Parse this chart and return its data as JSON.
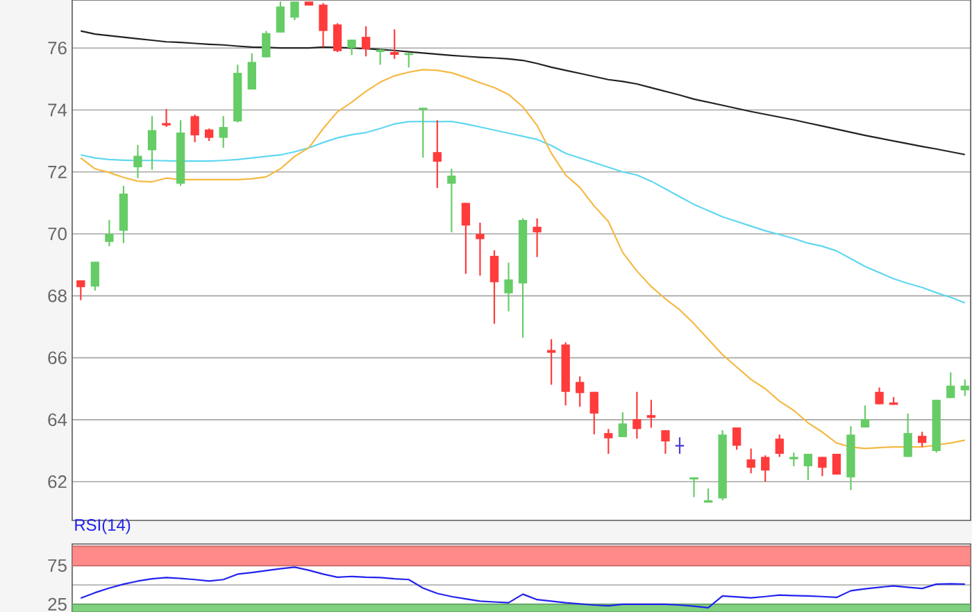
{
  "chart_data": [
    {
      "type": "candlestick",
      "categories": [
        null,
        null,
        null,
        null,
        null,
        null,
        null,
        null,
        null,
        null,
        null,
        null,
        null,
        null,
        null,
        null,
        null,
        null,
        null,
        null,
        null,
        null,
        null,
        null,
        null,
        null,
        null,
        null,
        null,
        null,
        null,
        null,
        null,
        null,
        null,
        null,
        null,
        null,
        null,
        null,
        null,
        null,
        null,
        null,
        null,
        null,
        null,
        null,
        null,
        null,
        null,
        null,
        null,
        null,
        null,
        null,
        null,
        null,
        null,
        null,
        null,
        null,
        null
      ],
      "ohlc": [
        [
          68.5,
          68.5,
          67.86,
          68.28
        ],
        [
          68.3,
          69.1,
          68.17,
          69.1
        ],
        [
          69.74,
          70.45,
          69.6,
          70.0
        ],
        [
          70.1,
          71.55,
          69.7,
          71.3
        ],
        [
          72.15,
          72.87,
          71.8,
          72.52
        ],
        [
          72.7,
          73.8,
          72.07,
          73.35
        ],
        [
          73.55,
          74.03,
          73.45,
          73.5
        ],
        [
          71.62,
          73.67,
          71.55,
          73.27
        ],
        [
          73.8,
          73.85,
          72.96,
          73.18
        ],
        [
          73.37,
          73.4,
          73.0,
          73.1
        ],
        [
          73.1,
          73.8,
          72.78,
          73.45
        ],
        [
          73.63,
          75.46,
          73.6,
          75.2
        ],
        [
          74.66,
          75.83,
          74.66,
          75.55
        ],
        [
          75.7,
          76.55,
          75.7,
          76.48
        ],
        [
          76.5,
          77.5,
          76.5,
          77.34
        ],
        [
          76.98,
          77.5,
          76.9,
          77.5
        ],
        [
          77.5,
          77.5,
          77.37,
          77.37
        ],
        [
          77.4,
          77.45,
          76.03,
          76.55
        ],
        [
          76.76,
          76.8,
          75.87,
          75.9
        ],
        [
          76.0,
          76.27,
          75.77,
          76.27
        ],
        [
          76.36,
          76.7,
          75.73,
          75.96
        ],
        [
          75.9,
          75.97,
          75.46,
          75.95
        ],
        [
          75.87,
          76.6,
          75.65,
          75.78
        ],
        [
          75.8,
          75.85,
          75.37,
          75.83
        ],
        [
          74.03,
          74.07,
          72.46,
          74.07
        ],
        [
          72.64,
          73.67,
          71.48,
          72.33
        ],
        [
          71.62,
          72.1,
          70.05,
          71.88
        ],
        [
          71.0,
          71.0,
          68.71,
          70.27
        ],
        [
          70.0,
          70.36,
          68.65,
          69.83
        ],
        [
          69.29,
          69.47,
          67.1,
          68.44
        ],
        [
          68.08,
          69.07,
          67.5,
          68.53
        ],
        [
          68.4,
          70.5,
          66.65,
          70.45
        ],
        [
          70.23,
          70.5,
          69.25,
          70.05
        ],
        [
          66.25,
          66.6,
          65.13,
          66.16
        ],
        [
          66.43,
          66.5,
          64.46,
          64.9
        ],
        [
          65.22,
          65.4,
          64.42,
          64.86
        ],
        [
          64.9,
          64.9,
          63.53,
          64.2
        ],
        [
          63.57,
          63.7,
          62.9,
          63.4
        ],
        [
          63.44,
          64.24,
          63.44,
          63.88
        ],
        [
          64.02,
          64.9,
          63.39,
          63.7
        ],
        [
          64.15,
          64.64,
          63.74,
          64.06
        ],
        [
          63.66,
          63.66,
          62.9,
          63.3
        ],
        [
          63.16,
          63.43,
          62.9,
          63.16
        ],
        [
          62.1,
          62.14,
          61.5,
          62.14
        ],
        [
          61.35,
          61.78,
          61.35,
          61.4
        ],
        [
          61.46,
          63.66,
          61.4,
          63.52
        ],
        [
          63.75,
          63.75,
          63.03,
          63.16
        ],
        [
          62.72,
          63.07,
          62.27,
          62.45
        ],
        [
          62.8,
          62.85,
          62.0,
          62.36
        ],
        [
          63.39,
          63.52,
          62.8,
          62.9
        ],
        [
          62.75,
          62.94,
          62.5,
          62.8
        ],
        [
          62.5,
          62.9,
          62.05,
          62.9
        ],
        [
          62.8,
          62.8,
          62.18,
          62.45
        ],
        [
          62.9,
          62.9,
          62.23,
          62.23
        ],
        [
          62.14,
          63.79,
          61.73,
          63.52
        ],
        [
          63.75,
          64.46,
          63.75,
          64.02
        ],
        [
          64.9,
          65.04,
          64.5,
          64.5
        ],
        [
          64.53,
          64.73,
          64.48,
          64.48
        ],
        [
          62.8,
          64.2,
          62.8,
          63.57
        ],
        [
          63.48,
          63.61,
          63.12,
          63.25
        ],
        [
          62.99,
          64.64,
          62.94,
          64.64
        ],
        [
          64.7,
          65.53,
          64.7,
          65.1
        ],
        [
          64.95,
          65.3,
          64.77,
          65.1
        ]
      ],
      "colors": [
        "#ff3b3b",
        "#66cc66",
        "#66cc66",
        "#66cc66",
        "#66cc66",
        "#66cc66",
        "#ff3b3b",
        "#66cc66",
        "#ff3b3b",
        "#ff3b3b",
        "#66cc66",
        "#66cc66",
        "#66cc66",
        "#66cc66",
        "#66cc66",
        "#66cc66",
        "#ff3b3b",
        "#ff3b3b",
        "#ff3b3b",
        "#66cc66",
        "#ff3b3b",
        "#66cc66",
        "#ff3b3b",
        "#66cc66",
        "#66cc66",
        "#ff3b3b",
        "#66cc66",
        "#ff3b3b",
        "#ff3b3b",
        "#ff3b3b",
        "#66cc66",
        "#66cc66",
        "#ff3b3b",
        "#ff3b3b",
        "#ff3b3b",
        "#ff3b3b",
        "#ff3b3b",
        "#ff3b3b",
        "#66cc66",
        "#ff3b3b",
        "#ff3b3b",
        "#ff3b3b",
        "#4b3fd0",
        "#66cc66",
        "#66cc66",
        "#66cc66",
        "#ff3b3b",
        "#ff3b3b",
        "#ff3b3b",
        "#ff3b3b",
        "#66cc66",
        "#66cc66",
        "#ff3b3b",
        "#ff3b3b",
        "#66cc66",
        "#66cc66",
        "#ff3b3b",
        "#ff3b3b",
        "#66cc66",
        "#ff3b3b",
        "#66cc66",
        "#66cc66",
        "#66cc66"
      ],
      "series": [
        {
          "type": "line",
          "color": "#222222",
          "values": [
            76.55,
            76.45,
            76.4,
            76.35,
            76.3,
            76.25,
            76.2,
            76.18,
            76.15,
            76.12,
            76.1,
            76.06,
            76.03,
            76.02,
            76.0,
            76.0,
            76.0,
            76.03,
            76.02,
            76.0,
            75.98,
            75.95,
            75.92,
            75.88,
            75.84,
            75.8,
            75.76,
            75.73,
            75.7,
            75.68,
            75.65,
            75.6,
            75.5,
            75.38,
            75.28,
            75.18,
            75.08,
            74.98,
            74.92,
            74.84,
            74.72,
            74.6,
            74.48,
            74.35,
            74.25,
            74.15,
            74.05,
            73.95,
            73.86,
            73.77,
            73.68,
            73.58,
            73.48,
            73.38,
            73.28,
            73.18,
            73.09,
            73.0,
            72.91,
            72.82,
            72.74,
            72.65,
            72.56
          ]
        },
        {
          "type": "line",
          "color": "#5fd7f0",
          "values": [
            72.55,
            72.45,
            72.4,
            72.38,
            72.37,
            72.37,
            72.36,
            72.35,
            72.35,
            72.35,
            72.37,
            72.4,
            72.45,
            72.5,
            72.55,
            72.65,
            72.78,
            72.95,
            73.1,
            73.2,
            73.27,
            73.4,
            73.55,
            73.62,
            73.63,
            73.62,
            73.63,
            73.55,
            73.45,
            73.35,
            73.25,
            73.15,
            73.05,
            72.85,
            72.6,
            72.45,
            72.3,
            72.15,
            72.0,
            71.9,
            71.7,
            71.45,
            71.2,
            70.95,
            70.75,
            70.55,
            70.4,
            70.25,
            70.1,
            69.98,
            69.85,
            69.7,
            69.6,
            69.45,
            69.2,
            68.95,
            68.75,
            68.55,
            68.4,
            68.27,
            68.1,
            67.95,
            67.77
          ]
        },
        {
          "type": "line",
          "color": "#f5b942",
          "values": [
            72.45,
            72.1,
            71.98,
            71.82,
            71.7,
            71.68,
            71.8,
            71.75,
            71.75,
            71.75,
            71.75,
            71.75,
            71.78,
            71.84,
            72.1,
            72.5,
            72.78,
            73.4,
            73.94,
            74.25,
            74.6,
            74.9,
            75.1,
            75.22,
            75.3,
            75.28,
            75.2,
            75.05,
            74.88,
            74.72,
            74.5,
            74.1,
            73.5,
            72.6,
            71.9,
            71.5,
            70.9,
            70.4,
            69.4,
            68.8,
            68.3,
            67.9,
            67.55,
            67.1,
            66.6,
            66.1,
            65.7,
            65.3,
            65.0,
            64.6,
            64.3,
            63.9,
            63.6,
            63.25,
            63.12,
            63.07,
            63.1,
            63.12,
            63.12,
            63.12,
            63.18,
            63.25,
            63.34
          ]
        }
      ],
      "ylim": [
        60.75,
        77.55
      ],
      "yticks": [
        62,
        64,
        66,
        68,
        70,
        72,
        74,
        76
      ],
      "grid": "y",
      "tick_labels": "y"
    },
    {
      "type": "line",
      "title": "RSI(14)",
      "categories": [
        null,
        null,
        null,
        null,
        null,
        null,
        null,
        null,
        null,
        null,
        null,
        null,
        null,
        null,
        null,
        null,
        null,
        null,
        null,
        null,
        null,
        null,
        null,
        null,
        null,
        null,
        null,
        null,
        null,
        null,
        null,
        null,
        null,
        null,
        null,
        null,
        null,
        null,
        null,
        null,
        null,
        null,
        null,
        null,
        null,
        null,
        null,
        null,
        null,
        null,
        null,
        null,
        null,
        null,
        null,
        null,
        null,
        null,
        null,
        null,
        null,
        null,
        null
      ],
      "series": [
        {
          "color": "#2222ee",
          "values": [
            33,
            40,
            46,
            51,
            55,
            58,
            59.5,
            58.5,
            57,
            55,
            57,
            64,
            66,
            68.5,
            71,
            73,
            69,
            64,
            60,
            61,
            60,
            59.5,
            58,
            57,
            46,
            39,
            35,
            32,
            29,
            28,
            27,
            38,
            31,
            29,
            27,
            25.5,
            24,
            23,
            25,
            25,
            25,
            25,
            24,
            22.6,
            20.5,
            35.7,
            34.5,
            33.3,
            35,
            36.9,
            36.3,
            35.7,
            35,
            33.9,
            42.5,
            45,
            47,
            48.8,
            47,
            45.4,
            51,
            51.5,
            51
          ]
        }
      ],
      "ylim": [
        15,
        103
      ],
      "yticks": [
        25,
        {
          "value": 50,
          "label": null
        },
        75
      ],
      "grid": "y",
      "tick_labels": "y",
      "bands": [
        {
          "axis": "y",
          "from": 75,
          "to": 100,
          "color": "#ff8a8a"
        },
        {
          "axis": "y",
          "from": 15,
          "to": 25,
          "color": "#7fd07f"
        }
      ]
    }
  ]
}
